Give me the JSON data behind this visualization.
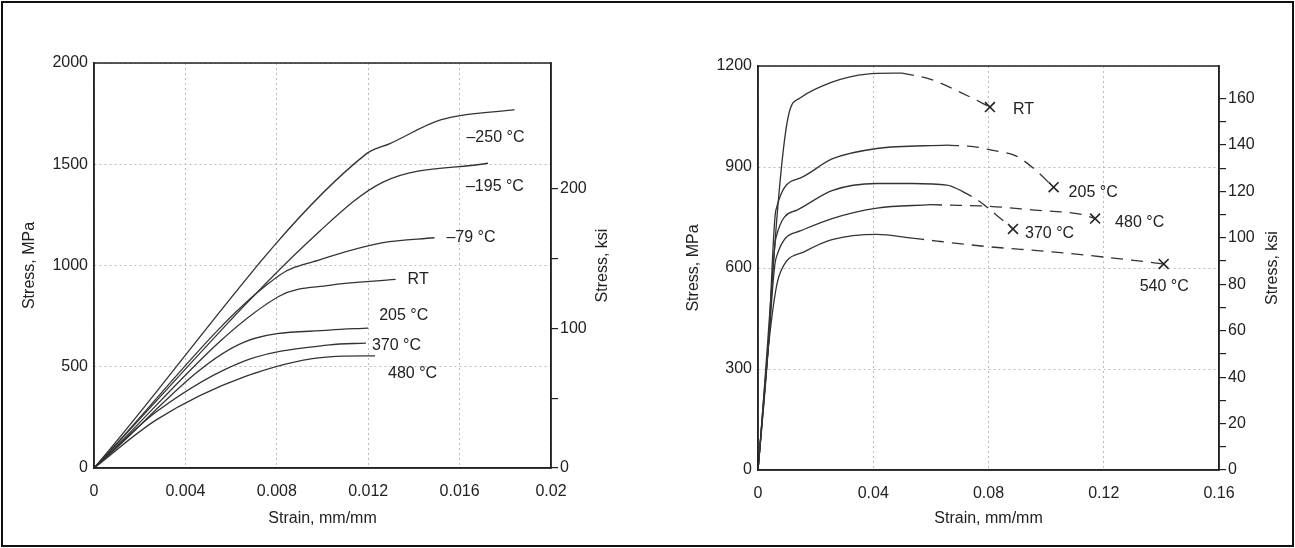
{
  "chart_data": [
    {
      "type": "line",
      "xlabel": "Strain, mm/mm",
      "ylabel": "Stress, MPa",
      "y2label": "Stress, ksi",
      "xlim": [
        0,
        0.02
      ],
      "xticks": [
        0,
        0.004,
        0.008,
        0.012,
        0.016,
        0.02
      ],
      "ylim": [
        0,
        2000
      ],
      "yticks": [
        0,
        500,
        1000,
        1500,
        2000
      ],
      "y2lim": [
        0,
        290
      ],
      "y2ticks": [
        0,
        {
          "value": 50,
          "label": null
        },
        100,
        {
          "value": 150,
          "label": null
        },
        200
      ],
      "grid": true,
      "marker": "none",
      "line_style": "solid",
      "series": [
        {
          "name": "–250 °C",
          "color": "#333333",
          "x": [
            0,
            0.0119,
            0.01295,
            0.0152,
            0.0184
          ],
          "values": [
            0,
            1550,
            1602,
            1720,
            1770
          ]
        },
        {
          "name": "–195 °C",
          "color": "#333333",
          "x": [
            0,
            0.0099,
            0.01265,
            0.01724
          ],
          "values": [
            0,
            1172,
            1412,
            1505
          ]
        },
        {
          "name": "–79 °C",
          "color": "#333333",
          "x": [
            0,
            0.0081,
            0.0099,
            0.01265,
            0.0149
          ],
          "values": [
            0,
            951,
            1029,
            1113,
            1137
          ]
        },
        {
          "name": "RT",
          "color": "#333333",
          "x": [
            0,
            0.0081,
            0.0103,
            0.0132
          ],
          "values": [
            0,
            848,
            902,
            931
          ]
        },
        {
          "name": "205 °C",
          "color": "#333333",
          "x": [
            0,
            0.0066,
            0.0103,
            0.012
          ],
          "values": [
            0,
            623,
            681,
            691
          ]
        },
        {
          "name": "370 °C",
          "color": "#333333",
          "x": [
            0,
            0.00276,
            0.0066,
            0.0103,
            0.0119
          ],
          "values": [
            0,
            280,
            529,
            608,
            617
          ]
        },
        {
          "name": "480 °C",
          "color": "#333333",
          "x": [
            0,
            0.00276,
            0.0066,
            0.0103,
            0.0123
          ],
          "values": [
            0,
            240,
            451,
            549,
            554
          ]
        }
      ]
    },
    {
      "type": "line",
      "xlabel": "Strain, mm/mm",
      "ylabel": "Stress, MPa",
      "y2label": "Stress, ksi",
      "xlim": [
        0,
        0.16
      ],
      "xticks": [
        0,
        0.04,
        0.08,
        0.12,
        0.16
      ],
      "ylim": [
        0,
        1200
      ],
      "yticks": [
        0,
        300,
        600,
        900,
        1200
      ],
      "y2lim": [
        0,
        174
      ],
      "y2ticks": [
        0,
        {
          "value": 10,
          "label": null
        },
        20,
        {
          "value": 30,
          "label": null
        },
        40,
        {
          "value": 50,
          "label": null
        },
        60,
        {
          "value": 70,
          "label": null
        },
        80,
        {
          "value": 90,
          "label": null
        },
        100,
        {
          "value": 110,
          "label": null
        },
        120,
        {
          "value": 130,
          "label": null
        },
        140,
        {
          "value": 150,
          "label": null
        },
        160
      ],
      "grid": true,
      "marker": "none",
      "line_style": "solid",
      "series": [
        {
          "color": "#333333",
          "x": [
            0,
            0.0105,
            0.0146,
            0.0257,
            0.0378,
            0.05
          ],
          "values": [
            0,
            1050,
            1105,
            1152,
            1176,
            1179
          ]
        },
        {
          "color": "#333333",
          "x": [
            0,
            0.0035,
            0.0062,
            0.0146,
            0.0257,
            0.0413,
            0.0656
          ],
          "values": [
            0,
            357,
            772,
            867,
            924,
            955,
            965
          ]
        },
        {
          "color": "#333333",
          "x": [
            0,
            0.0035,
            0.0062,
            0.0135,
            0.0257,
            0.0413,
            0.0535,
            0.0656,
            0.0705
          ],
          "values": [
            0,
            357,
            689,
            772,
            830,
            851,
            851,
            846,
            830
          ]
        },
        {
          "color": "#333333",
          "x": [
            0,
            0.0035,
            0.0062,
            0.0146,
            0.0257,
            0.0413,
            0.0597
          ],
          "values": [
            0,
            357,
            627,
            710,
            747,
            778,
            788
          ]
        },
        {
          "color": "#333333",
          "x": [
            0,
            0.0035,
            0.0073,
            0.016,
            0.0257,
            0.0413,
            0.0535
          ],
          "values": [
            0,
            357,
            576,
            648,
            684,
            700,
            689
          ]
        },
        {
          "color": "#333333",
          "line_style": "dashed",
          "x": [
            0.05,
            0.0597,
            0.0729,
            0.0805
          ],
          "values": [
            1179,
            1161,
            1111,
            1078
          ]
        },
        {
          "color": "#333333",
          "line_style": "dashed",
          "x": [
            0.0656,
            0.0753,
            0.081,
            0.0895,
            0.0955,
            0.1026
          ],
          "values": [
            965,
            960,
            950,
            933,
            897,
            840
          ]
        },
        {
          "color": "#333333",
          "line_style": "dashed",
          "x": [
            0.0705,
            0.0767,
            0.0828,
            0.0885
          ],
          "values": [
            830,
            799,
            757,
            716
          ]
        },
        {
          "color": "#333333",
          "line_style": "dashed",
          "x": [
            0.0597,
            0.0694,
            0.0791,
            0.0961,
            0.1118,
            0.117
          ],
          "values": [
            788,
            786,
            784,
            772,
            760,
            747
          ]
        },
        {
          "color": "#333333",
          "line_style": "dashed",
          "x": [
            0.0535,
            0.0621,
            0.0791,
            0.102,
            0.1312,
            0.1408
          ],
          "values": [
            689,
            680,
            664,
            648,
            622,
            612
          ]
        },
        {
          "name": "RT",
          "type": "scatter",
          "marker": "cross",
          "color": "#222222",
          "x": [
            0.0805
          ],
          "values": [
            1078
          ]
        },
        {
          "name": "205 °C",
          "type": "scatter",
          "marker": "cross",
          "color": "#222222",
          "x": [
            0.1026
          ],
          "values": [
            840
          ]
        },
        {
          "name": "370 °C",
          "type": "scatter",
          "marker": "cross",
          "color": "#222222",
          "x": [
            0.0885
          ],
          "values": [
            716
          ]
        },
        {
          "name": "480 °C",
          "type": "scatter",
          "marker": "cross",
          "color": "#222222",
          "x": [
            0.117
          ],
          "values": [
            747
          ]
        },
        {
          "name": "540 °C",
          "type": "scatter",
          "marker": "cross",
          "color": "#222222",
          "x": [
            0.1408
          ],
          "values": [
            612
          ]
        }
      ]
    }
  ]
}
